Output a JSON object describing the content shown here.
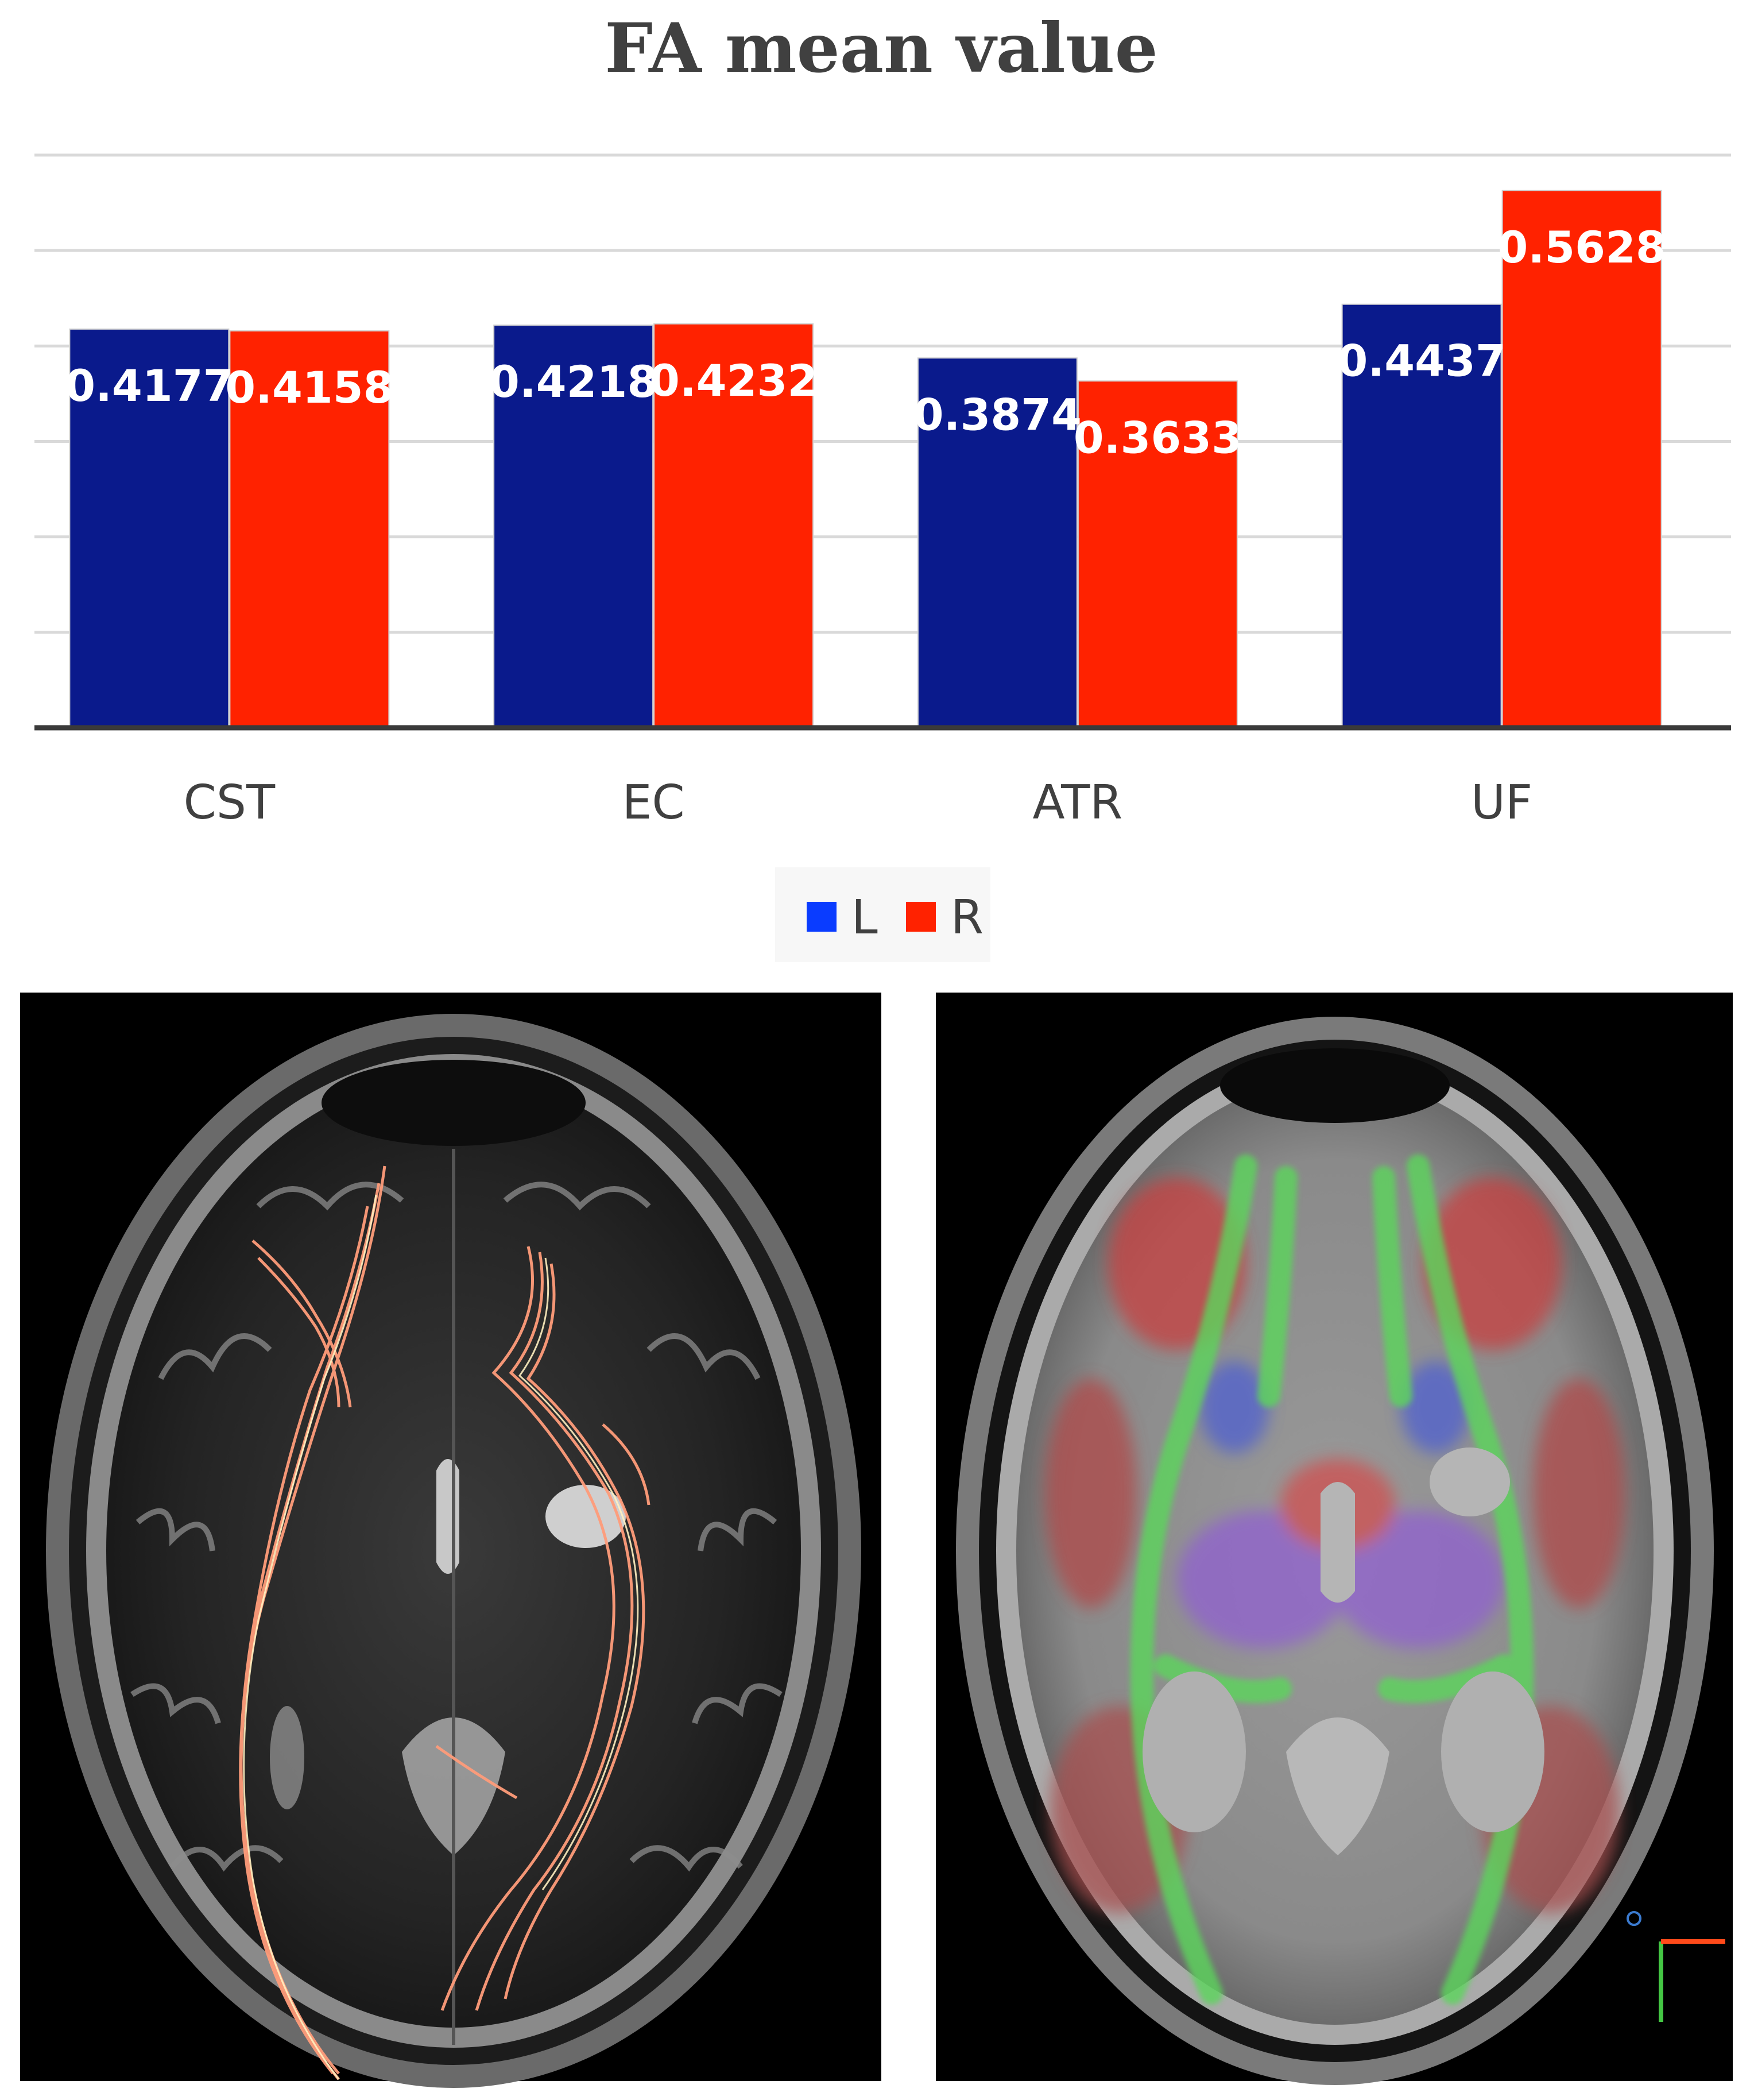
{
  "chart_data": {
    "type": "bar",
    "title": "FA mean value",
    "categories": [
      "CST",
      "EC",
      "ATR",
      "UF"
    ],
    "series": [
      {
        "name": "L",
        "values": [
          0.4177,
          0.4218,
          0.3874,
          0.4437
        ],
        "color": "#0a1a8c"
      },
      {
        "name": "R",
        "values": [
          0.4158,
          0.4232,
          0.3633,
          0.5628
        ],
        "color": "#ff2200"
      }
    ],
    "value_labels": [
      [
        "0.4177",
        "0.4218",
        "0.3874",
        "0.4437"
      ],
      [
        "0.4158",
        "0.4232",
        "0.3633",
        "0.5628"
      ]
    ],
    "ylim": [
      0,
      0.6
    ],
    "grid": true,
    "legend": "bottom",
    "legend_swatch_colors": [
      "#0a3cff",
      "#ff2200"
    ]
  },
  "images": [
    {
      "name": "mri-axial-tractography",
      "description_icon": "brain-mri-fiber-tracts"
    },
    {
      "name": "mri-axial-color-fa-map",
      "description_icon": "brain-mri-color-fa"
    }
  ]
}
